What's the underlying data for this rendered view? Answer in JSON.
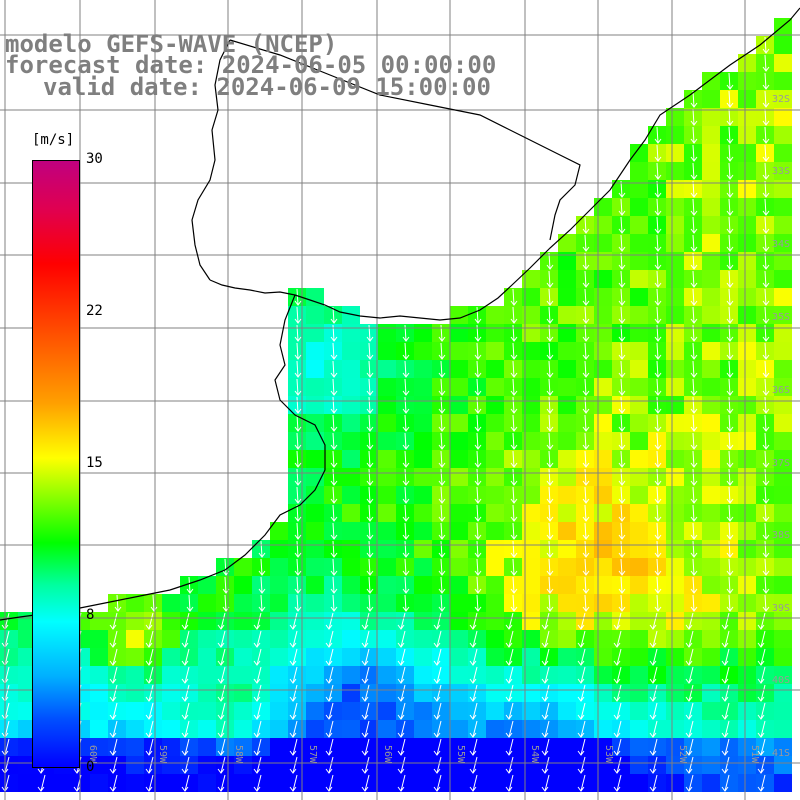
{
  "title": {
    "line1": "modelo GEFS-WAVE (NCEP)",
    "line2": "forecast date: 2024-06-05 00:00:00",
    "line3": "valid date: 2024-06-09 15:00:00"
  },
  "colorbar": {
    "unit": "[m/s]",
    "ticks": [
      "30",
      "22",
      "15",
      "8",
      "0"
    ],
    "range": [
      0,
      30
    ]
  },
  "map": {
    "lat_labels": [
      "32S",
      "33S",
      "34S",
      "35S",
      "36S",
      "37S",
      "38S",
      "39S",
      "40S",
      "41S"
    ],
    "lon_labels": [
      "60W",
      "59W",
      "58W",
      "57W",
      "56W",
      "55W",
      "54W",
      "53W",
      "52W",
      "51W"
    ],
    "colors": {
      "land": "#ffffff",
      "coast": "#000000",
      "grid": "#808080",
      "arrows": "#ffffff"
    }
  }
}
